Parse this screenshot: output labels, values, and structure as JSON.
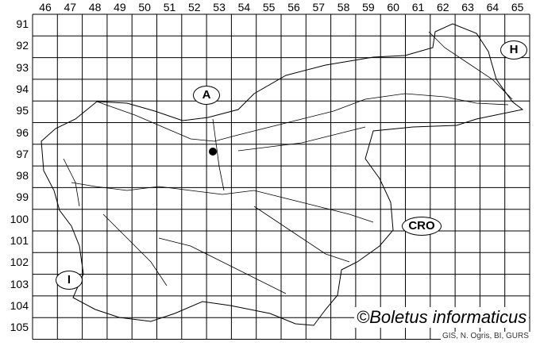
{
  "map": {
    "column_labels": [
      "46",
      "47",
      "48",
      "49",
      "50",
      "51",
      "52",
      "53",
      "54",
      "55",
      "56",
      "57",
      "58",
      "59",
      "60",
      "61",
      "62",
      "63",
      "64",
      "65"
    ],
    "row_labels": [
      "91",
      "92",
      "93",
      "94",
      "95",
      "96",
      "97",
      "98",
      "99",
      "100",
      "101",
      "102",
      "103",
      "104",
      "105"
    ],
    "neighbour_labels": {
      "austria": "A",
      "hungary": "H",
      "croatia": "CRO",
      "italy": "I"
    },
    "record_marker": {
      "column": "52",
      "row": "97"
    },
    "copyright": "©Boletus informaticus",
    "credit": "GIS, N. Ogris, BI, GURS"
  }
}
